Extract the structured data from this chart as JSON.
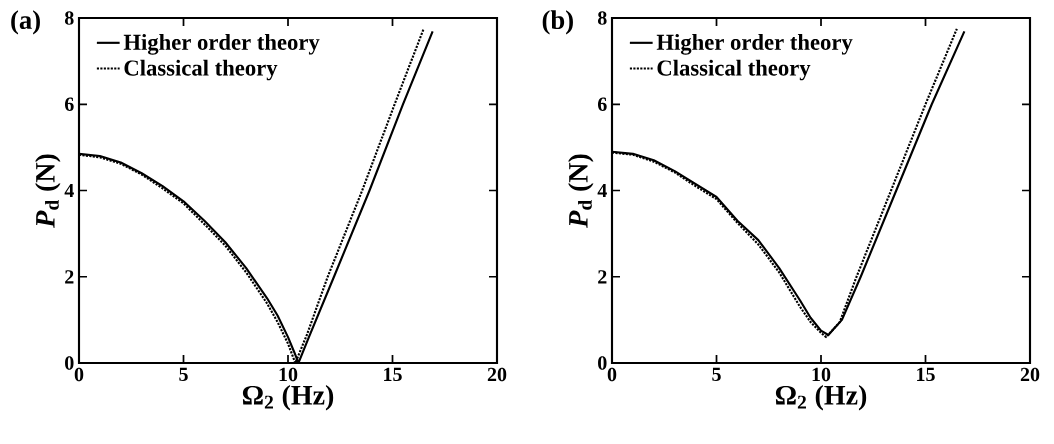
{
  "chart_data": [
    {
      "type": "line",
      "title": "(a)",
      "xlabel": "Ω$_{2}$ (Hz)",
      "ylabel": "*P*$_{d}$ (N)",
      "xlim": [
        0,
        20
      ],
      "ylim": [
        0,
        8
      ],
      "xticks": [
        0,
        5,
        10,
        15,
        20
      ],
      "yticks": [
        0,
        2,
        4,
        6,
        8
      ],
      "grid": false,
      "legend": "top left",
      "series": [
        {
          "name": "Higher order theory",
          "color": "#000000",
          "line_style": "solid",
          "x": [
            0,
            1,
            2,
            3,
            4,
            5,
            6,
            7,
            8,
            9,
            9.5,
            10,
            10.3,
            10.5,
            11,
            12.2,
            13.9,
            15.5,
            16.92
          ],
          "values": [
            4.85,
            4.8,
            4.65,
            4.4,
            4.1,
            3.75,
            3.3,
            2.8,
            2.2,
            1.5,
            1.1,
            0.6,
            0.25,
            0,
            0.6,
            2,
            4,
            6,
            7.69
          ]
        },
        {
          "name": "Classical theory",
          "color": "#000000",
          "line_style": "dotted",
          "x": [
            0,
            1,
            2,
            3,
            4,
            5,
            6,
            7,
            8,
            9,
            9.5,
            10,
            10.35,
            10.9,
            11.9,
            13.55,
            15.1,
            16.49
          ],
          "values": [
            4.83,
            4.77,
            4.62,
            4.37,
            4.05,
            3.7,
            3.22,
            2.72,
            2.1,
            1.38,
            0.95,
            0.45,
            0,
            0.65,
            2,
            4,
            6,
            7.75
          ]
        }
      ]
    },
    {
      "type": "line",
      "title": "(b)",
      "xlabel": "Ω$_{2}$ (Hz)",
      "ylabel": "*P*$_{d}$ (N)",
      "xlim": [
        0,
        20
      ],
      "ylim": [
        0,
        8
      ],
      "xticks": [
        0,
        5,
        10,
        15,
        20
      ],
      "yticks": [
        0,
        2,
        4,
        6,
        8
      ],
      "grid": false,
      "legend": "top left",
      "series": [
        {
          "name": "Higher order theory",
          "color": "#000000",
          "line_style": "solid",
          "x": [
            0,
            1,
            2,
            3,
            4,
            5,
            6,
            7,
            8,
            9,
            9.5,
            10,
            10.35,
            11,
            11.9,
            13.6,
            15.3,
            16.86
          ],
          "values": [
            4.9,
            4.85,
            4.7,
            4.45,
            4.15,
            3.85,
            3.3,
            2.85,
            2.2,
            1.45,
            1.05,
            0.75,
            0.65,
            1.0,
            2,
            4,
            6,
            7.69
          ]
        },
        {
          "name": "Classical theory",
          "color": "#000000",
          "line_style": "dotted",
          "x": [
            0,
            1,
            2,
            3,
            4,
            5,
            6,
            7,
            8,
            9,
            9.5,
            10,
            10.25,
            10.9,
            11.7,
            13.35,
            15.0,
            16.5
          ],
          "values": [
            4.88,
            4.83,
            4.67,
            4.42,
            4.1,
            3.8,
            3.25,
            2.75,
            2.1,
            1.3,
            0.95,
            0.7,
            0.6,
            0.95,
            2,
            4,
            6,
            7.75
          ]
        }
      ]
    }
  ]
}
